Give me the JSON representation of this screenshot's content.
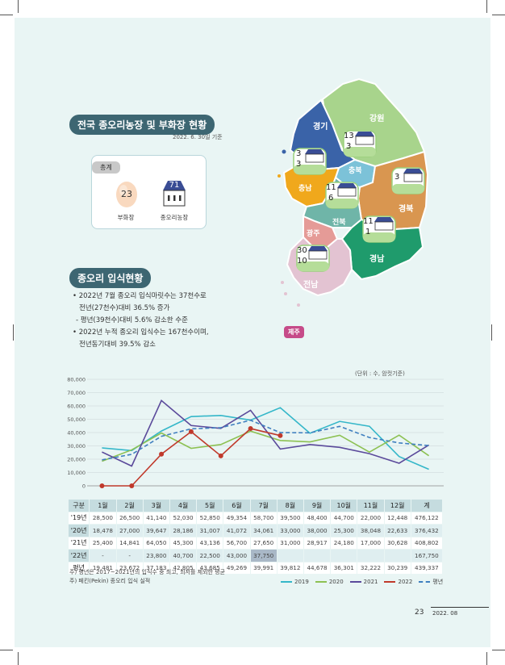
{
  "sections": {
    "facility_title": "전국 종오리농장 및 부화장 현황",
    "facility_date": "2022. 6. 30일 기준",
    "stocking_title": "종오리 입식현황"
  },
  "summary": {
    "tag": "총계",
    "hatchery_count": "23",
    "hatchery_label": "부화장",
    "farm_count": "71",
    "farm_label": "종오리농장"
  },
  "map": {
    "regions": [
      {
        "name": "경기",
        "color": "#3a63a8"
      },
      {
        "name": "강원",
        "color": "#a8d48c"
      },
      {
        "name": "충북",
        "color": "#7cc2d8"
      },
      {
        "name": "충남",
        "color": "#f0a81c"
      },
      {
        "name": "경북",
        "color": "#d99650"
      },
      {
        "name": "전북",
        "color": "#6fb5a8"
      },
      {
        "name": "광주",
        "color": "#e59b97"
      },
      {
        "name": "경남",
        "color": "#1f9b6c"
      },
      {
        "name": "전남",
        "color": "#e3c3d2"
      },
      {
        "name": "제주",
        "color": "#c64b89"
      }
    ],
    "markers": [
      {
        "region": "경기",
        "farms": "13",
        "hatcheries": "3"
      },
      {
        "region": "충남",
        "farms": "3",
        "hatcheries": "3"
      },
      {
        "region": "경북",
        "farms": "3",
        "hatcheries": ""
      },
      {
        "region": "전북",
        "farms": "11",
        "hatcheries": "6"
      },
      {
        "region": "경남",
        "farms": "11",
        "hatcheries": "1"
      },
      {
        "region": "전남",
        "farms": "30",
        "hatcheries": "10"
      }
    ]
  },
  "bullets": [
    "• 2022년 7월 종오리 입식마릿수는 37천수로",
    "  전년(27천수)대비 36.5% 증가",
    "- 평년(39천수)대비 5.6% 감소한 수준",
    "• 2022년 누적 종오리 입식수는 167천수이며,",
    "  전년동기대비 39.5% 감소"
  ],
  "unit_label": "(단위 : 수, 암컷기준)",
  "chart_data": {
    "type": "line",
    "x": [
      "1월",
      "2월",
      "3월",
      "4월",
      "5월",
      "6월",
      "7월",
      "8월",
      "9월",
      "10월",
      "11월",
      "12월"
    ],
    "ylim": [
      0,
      80000
    ],
    "yticks": [
      "0",
      "10,000",
      "20,000",
      "30,000",
      "40,000",
      "50,000",
      "60,000",
      "70,000",
      "80,000"
    ],
    "grid": true,
    "series": [
      {
        "name": "2019",
        "color": "#35b7c9",
        "dashed": false,
        "markers": false,
        "values": [
          28500,
          26500,
          41140,
          52030,
          52850,
          49354,
          58700,
          39500,
          48400,
          44700,
          22000,
          12448
        ]
      },
      {
        "name": "2020",
        "color": "#8dc153",
        "dashed": false,
        "markers": false,
        "values": [
          18478,
          27000,
          39647,
          28186,
          31007,
          41072,
          34061,
          33000,
          38000,
          25300,
          38048,
          22633
        ]
      },
      {
        "name": "2021",
        "color": "#5b4a9b",
        "dashed": false,
        "markers": false,
        "values": [
          25400,
          14841,
          64050,
          45300,
          43136,
          56700,
          27650,
          31000,
          28917,
          24180,
          17000,
          30628
        ]
      },
      {
        "name": "2022",
        "color": "#c0392b",
        "dashed": false,
        "markers": true,
        "values": [
          0,
          0,
          23800,
          40700,
          22500,
          43000,
          37750,
          null,
          null,
          null,
          null,
          null
        ]
      },
      {
        "name": "평년",
        "color": "#3f7fbf",
        "dashed": true,
        "markers": false,
        "values": [
          19481,
          23672,
          37183,
          42805,
          43685,
          49269,
          39991,
          39812,
          44678,
          36301,
          32222,
          30239
        ]
      }
    ]
  },
  "table": {
    "headers": [
      "구분",
      "1월",
      "2월",
      "3월",
      "4월",
      "5월",
      "6월",
      "7월",
      "8월",
      "9월",
      "10월",
      "11월",
      "12월",
      "계"
    ],
    "rows": [
      {
        "label": "'19년",
        "cells": [
          "28,500",
          "26,500",
          "41,140",
          "52,030",
          "52,850",
          "49,354",
          "58,700",
          "39,500",
          "48,400",
          "44,700",
          "22,000",
          "12,448",
          "476,122"
        ]
      },
      {
        "label": "'20년",
        "cells": [
          "18,478",
          "27,000",
          "39,647",
          "28,186",
          "31,007",
          "41,072",
          "34,061",
          "33,000",
          "38,000",
          "25,300",
          "38,048",
          "22,633",
          "376,432"
        ]
      },
      {
        "label": "'21년",
        "cells": [
          "25,400",
          "14,841",
          "64,050",
          "45,300",
          "43,136",
          "56,700",
          "27,650",
          "31,000",
          "28,917",
          "24,180",
          "17,000",
          "30,628",
          "408,802"
        ]
      },
      {
        "label": "'22년",
        "cells": [
          "-",
          "-",
          "23,800",
          "40,700",
          "22,500",
          "43,000",
          "37,750",
          "",
          "",
          "",
          "",
          "",
          "167,750"
        ]
      },
      {
        "label": "평년",
        "cells": [
          "19,481",
          "23,672",
          "37,183",
          "42,805",
          "43,685",
          "49,269",
          "39,991",
          "39,812",
          "44,678",
          "36,301",
          "32,222",
          "30,239",
          "439,337"
        ]
      }
    ]
  },
  "notes": [
    "주) 평년은 2017~2021년의 입식수 중 최고, 최저를 제외한 평균",
    "주) 페킨(Pekin) 종오리 입식 실적"
  ],
  "footer": {
    "page_number": "23",
    "issue": "2022. 08"
  }
}
